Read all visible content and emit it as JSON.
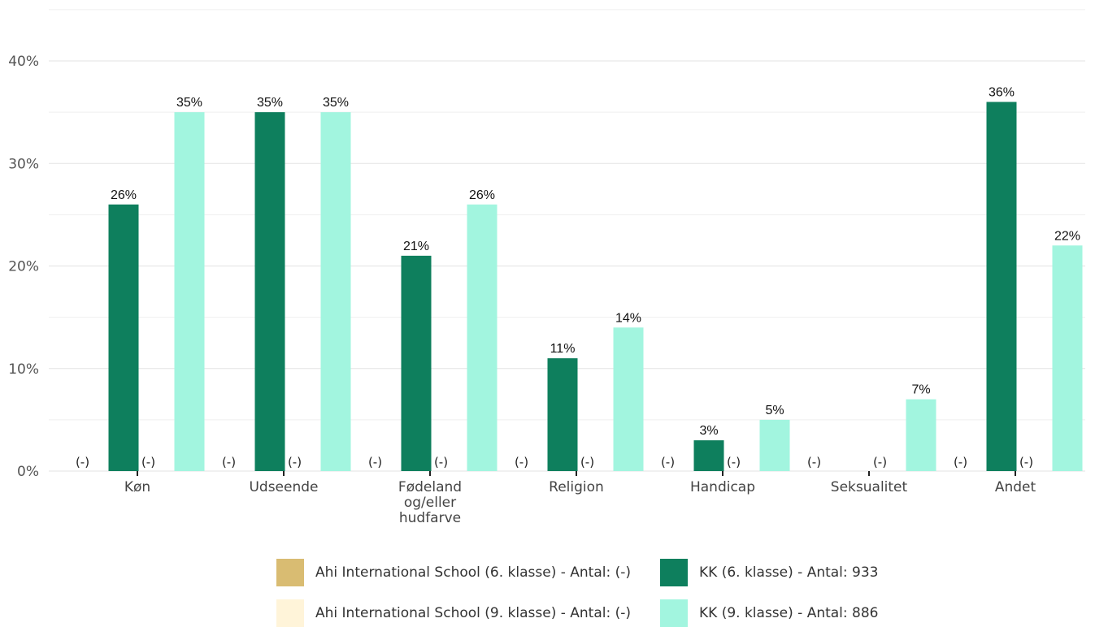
{
  "chart_data": {
    "type": "bar",
    "categories": [
      [
        "Køn"
      ],
      [
        "Udseende"
      ],
      [
        "Fødeland",
        "og/eller",
        "hudfarve"
      ],
      [
        "Religion"
      ],
      [
        "Handicap"
      ],
      [
        "Seksualitet"
      ],
      [
        "Andet"
      ]
    ],
    "ylim": [
      0,
      40
    ],
    "y_ticks": [
      0,
      10,
      20,
      30,
      40
    ],
    "y_tick_labels": [
      "0%",
      "10%",
      "20%",
      "30%",
      "40%"
    ],
    "grid": true,
    "legend_position": "bottom",
    "na_label": "(-)",
    "series": [
      {
        "name": "Ahi International School (6. klasse) - Antal: (-)",
        "color": "#d9bc72",
        "values": [
          null,
          null,
          null,
          null,
          null,
          null,
          null
        ],
        "labels": [
          "(-)",
          "(-)",
          "(-)",
          "(-)",
          "(-)",
          "(-)",
          "(-)"
        ]
      },
      {
        "name": "KK (6. klasse) - Antal: 933",
        "color": "#0e7f5d",
        "values": [
          26,
          35,
          21,
          11,
          3,
          null,
          36
        ],
        "labels": [
          "26%",
          "35%",
          "21%",
          "11%",
          "3%",
          "",
          "36%"
        ]
      },
      {
        "name": "Ahi International School (9. klasse) - Antal: (-)",
        "color": "#fff4d9",
        "values": [
          null,
          null,
          null,
          null,
          null,
          null,
          null
        ],
        "labels": [
          "(-)",
          "(-)",
          "(-)",
          "(-)",
          "(-)",
          "(-)",
          "(-)"
        ]
      },
      {
        "name": "KK (9. klasse) - Antal: 886",
        "color": "#a2f5df",
        "values": [
          35,
          35,
          26,
          14,
          5,
          7,
          22
        ],
        "labels": [
          "35%",
          "35%",
          "26%",
          "14%",
          "5%",
          "7%",
          "22%"
        ]
      }
    ]
  }
}
